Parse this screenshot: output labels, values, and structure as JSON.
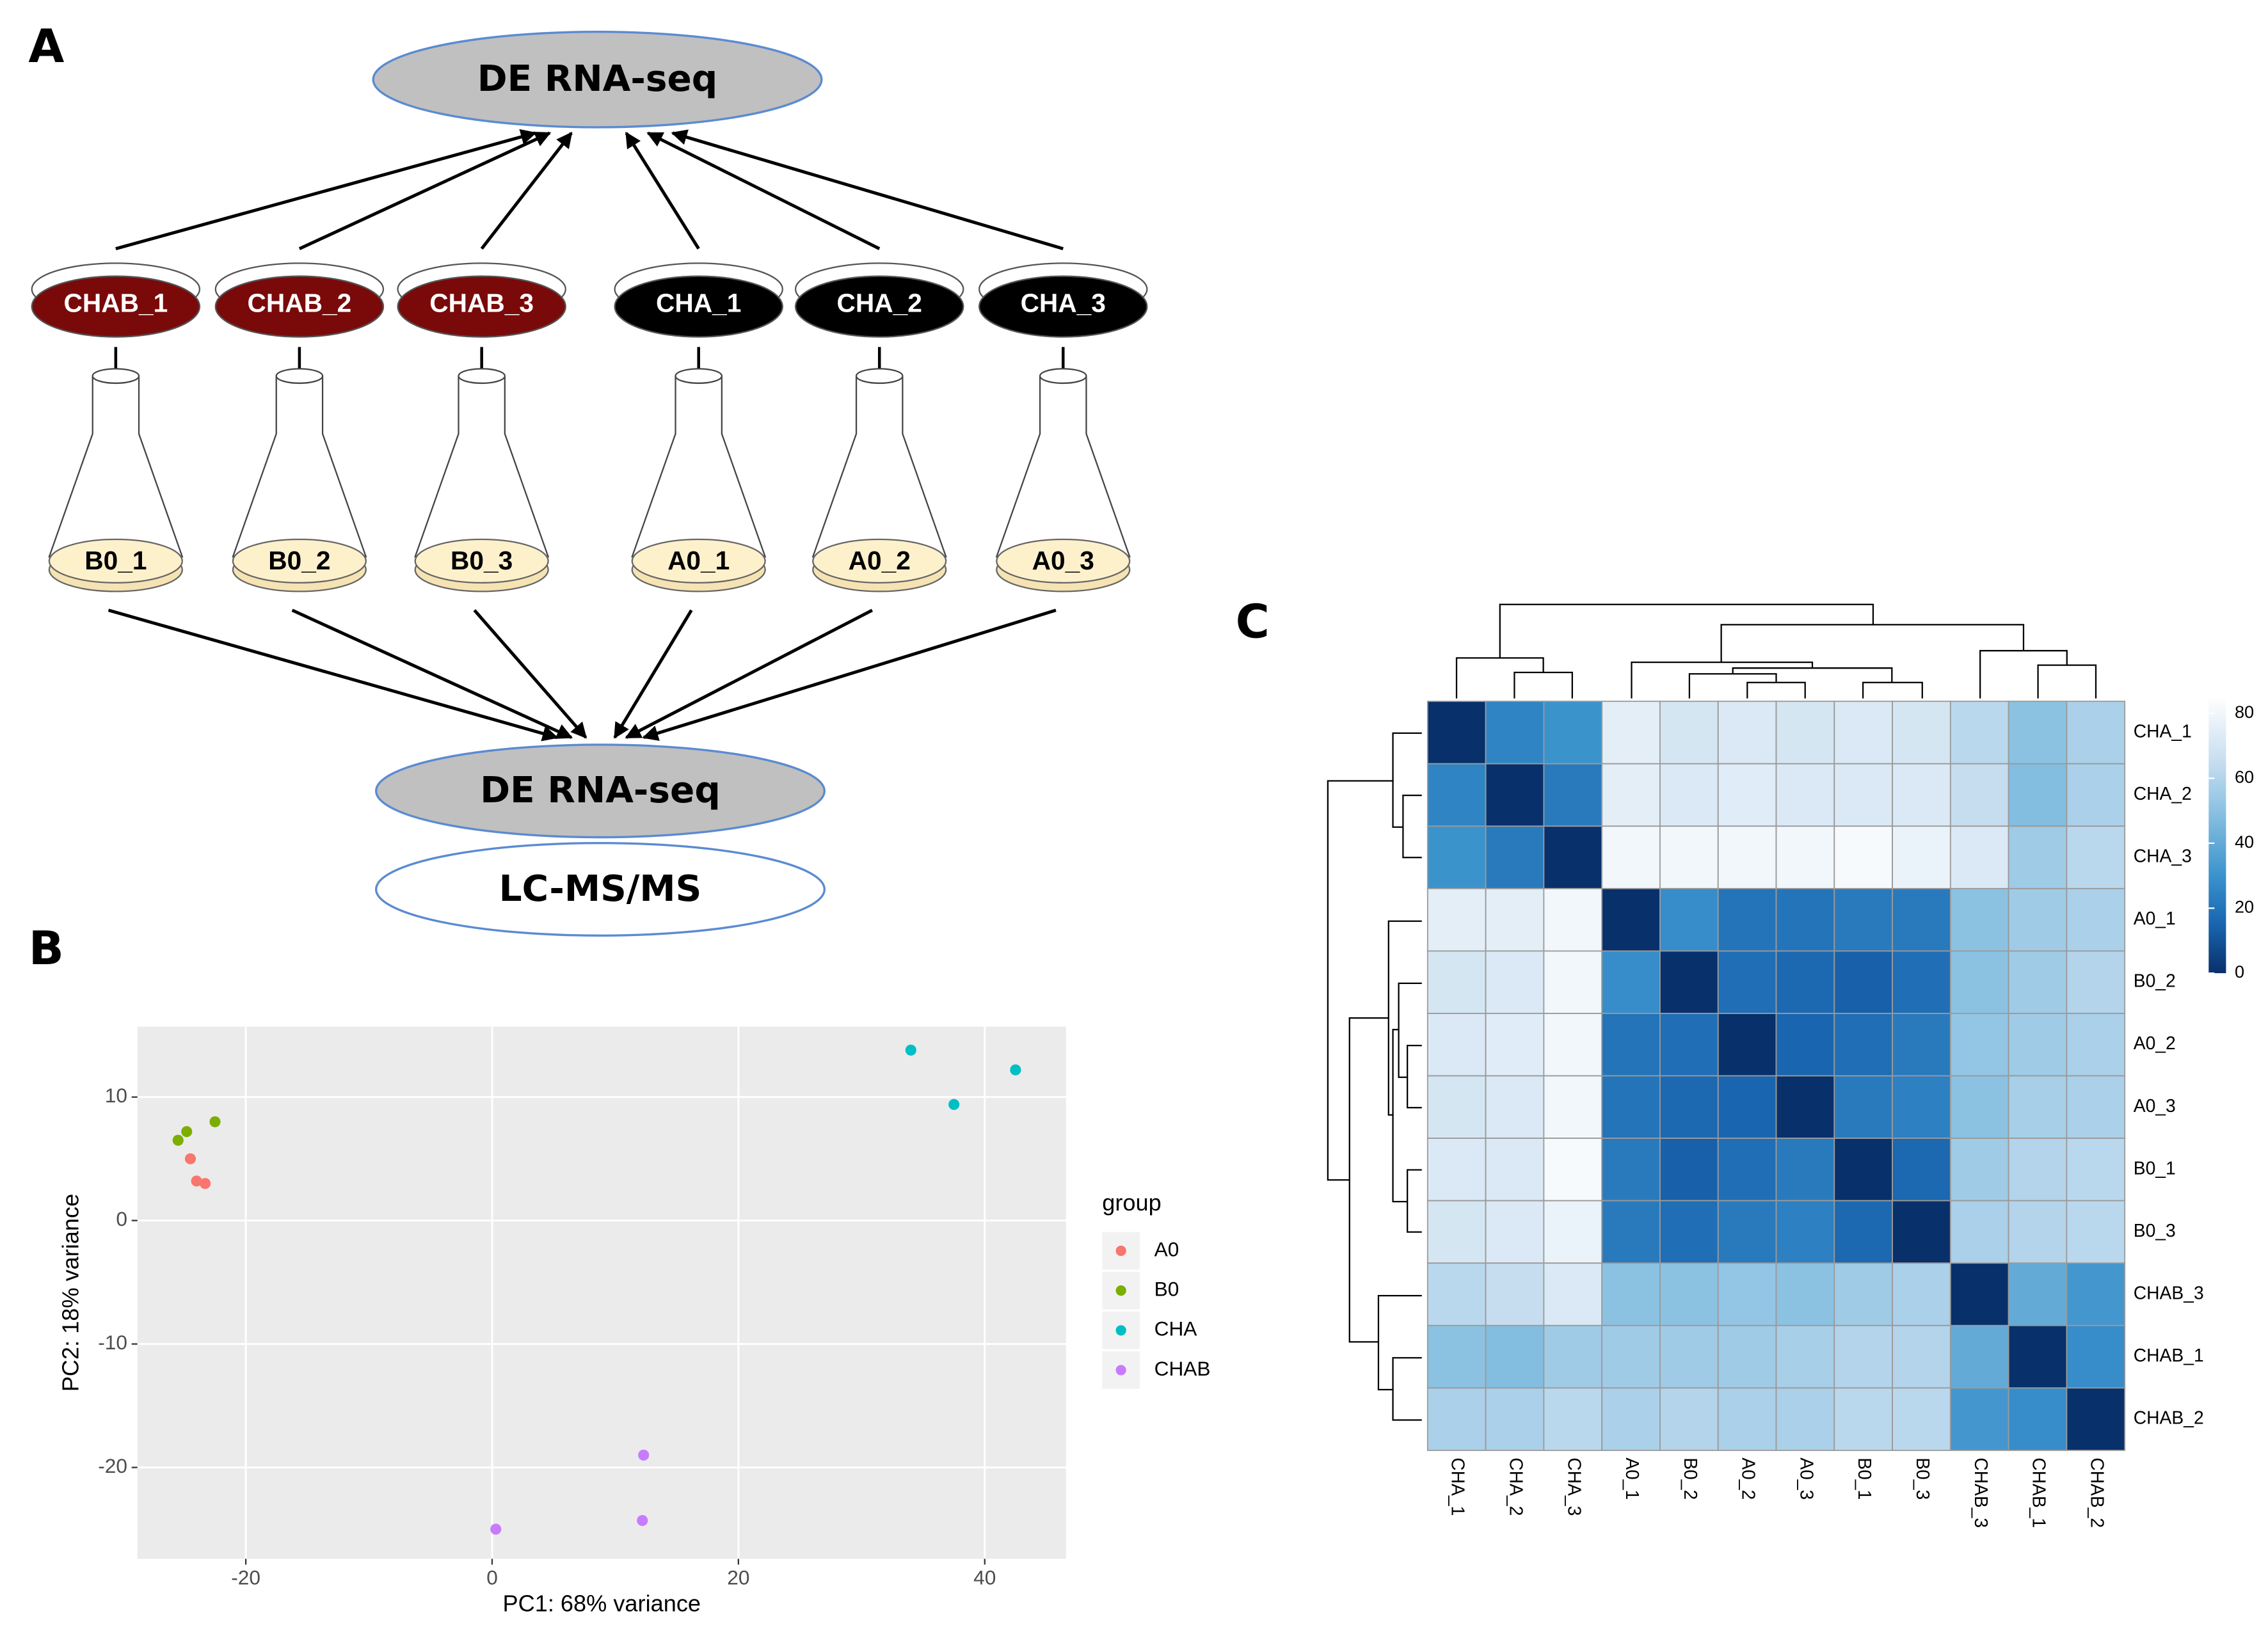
{
  "panel_labels": [
    "A",
    "B",
    "C"
  ],
  "diagram": {
    "top": "DE RNA-seq",
    "plates": [
      "CHAB_1",
      "CHAB_2",
      "CHAB_3",
      "CHA_1",
      "CHA_2",
      "CHA_3"
    ],
    "flasks": [
      "B0_1",
      "B0_2",
      "B0_3",
      "A0_1",
      "A0_2",
      "A0_3"
    ],
    "bottom": "DE RNA-seq",
    "bottom2": "LC-MS/MS"
  },
  "chart_data": [
    {
      "type": "scatter",
      "xlabel": "PC1: 68% variance",
      "ylabel": "PC2: 18% variance",
      "legend_title": "group",
      "xlim": [
        -28.8,
        46.6
      ],
      "ylim": [
        -27.4,
        15.7
      ],
      "xticks": [
        -20,
        0,
        20,
        40
      ],
      "yticks": [
        -20,
        -10,
        0,
        10
      ],
      "grid": true,
      "series": [
        {
          "name": "A0",
          "color": "#F8766D",
          "x": [
            -24.5,
            -24,
            -23.3
          ],
          "values": [
            5,
            3.2,
            3
          ]
        },
        {
          "name": "B0",
          "color": "#7CAE00",
          "x": [
            -25.5,
            -24.8,
            -22.5
          ],
          "values": [
            6.5,
            7.2,
            8
          ]
        },
        {
          "name": "CHA",
          "color": "#00BFC4",
          "x": [
            34,
            37.5,
            42.5
          ],
          "values": [
            13.8,
            9.4,
            12.2
          ]
        },
        {
          "name": "CHAB",
          "color": "#C77CFF",
          "x": [
            0.3,
            12.3,
            12.2
          ],
          "values": [
            -25,
            -19,
            -24.3
          ]
        }
      ]
    },
    {
      "type": "heatmap",
      "rows": [
        "CHA_1",
        "CHA_2",
        "CHA_3",
        "A0_1",
        "B0_2",
        "A0_2",
        "A0_3",
        "B0_1",
        "B0_3",
        "CHAB_3",
        "CHAB_1",
        "CHAB_2"
      ],
      "columns": [
        "CHA_1",
        "CHA_2",
        "CHA_3",
        "A0_1",
        "B0_2",
        "A0_2",
        "A0_3",
        "B0_1",
        "B0_3",
        "CHAB_3",
        "CHAB_1",
        "CHAB_2"
      ],
      "values": [
        [
          0,
          25,
          30,
          75,
          70,
          72,
          70,
          72,
          70,
          62,
          50,
          58
        ],
        [
          25,
          0,
          22,
          75,
          72,
          74,
          72,
          72,
          72,
          65,
          48,
          58
        ],
        [
          30,
          22,
          0,
          80,
          80,
          80,
          80,
          82,
          78,
          72,
          55,
          62
        ],
        [
          75,
          75,
          80,
          0,
          28,
          20,
          20,
          22,
          22,
          50,
          55,
          58
        ],
        [
          70,
          72,
          80,
          28,
          0,
          18,
          16,
          14,
          18,
          50,
          55,
          60
        ],
        [
          72,
          74,
          80,
          20,
          18,
          0,
          15,
          18,
          22,
          52,
          55,
          58
        ],
        [
          70,
          72,
          80,
          20,
          16,
          15,
          0,
          22,
          24,
          50,
          57,
          58
        ],
        [
          72,
          72,
          82,
          22,
          14,
          18,
          22,
          0,
          16,
          55,
          60,
          62
        ],
        [
          70,
          72,
          78,
          22,
          18,
          22,
          24,
          16,
          0,
          58,
          60,
          62
        ],
        [
          62,
          65,
          72,
          50,
          50,
          52,
          50,
          55,
          58,
          0,
          40,
          32
        ],
        [
          50,
          48,
          55,
          55,
          55,
          55,
          57,
          60,
          60,
          40,
          0,
          28
        ],
        [
          58,
          58,
          62,
          58,
          60,
          58,
          58,
          62,
          62,
          32,
          28,
          0
        ]
      ],
      "zlim": [
        0,
        85
      ],
      "colorbar_ticks": [
        0,
        20,
        40,
        60,
        80
      ]
    }
  ]
}
